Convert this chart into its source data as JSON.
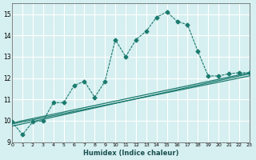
{
  "xlabel": "Humidex (Indice chaleur)",
  "ylabel": "",
  "background_color": "#d6eff0",
  "grid_color": "#ffffff",
  "line_color": "#1a7a6e",
  "xlim": [
    0,
    23
  ],
  "ylim": [
    9,
    15.5
  ],
  "yticks": [
    9,
    10,
    11,
    12,
    13,
    14,
    15
  ],
  "xticks": [
    0,
    1,
    2,
    3,
    4,
    5,
    6,
    7,
    8,
    9,
    10,
    11,
    12,
    13,
    14,
    15,
    16,
    17,
    18,
    19,
    20,
    21,
    22,
    23
  ],
  "jagged_x": [
    0,
    1,
    2,
    3,
    4,
    5,
    6,
    7,
    8,
    9,
    10,
    11,
    12,
    13,
    14,
    15,
    16,
    17,
    18,
    19,
    20,
    21,
    22,
    23
  ],
  "jagged_y": [
    9.95,
    9.35,
    9.95,
    10.0,
    10.85,
    10.85,
    11.65,
    11.85,
    11.1,
    11.85,
    13.8,
    13.0,
    13.8,
    14.2,
    14.85,
    15.1,
    14.65,
    14.5,
    13.25,
    12.1,
    12.1,
    12.2,
    12.25,
    12.25
  ],
  "line1_x": [
    0,
    23
  ],
  "line1_y": [
    9.9,
    12.25
  ],
  "line2_x": [
    0,
    23
  ],
  "line2_y": [
    9.85,
    12.1
  ],
  "line3_x": [
    0,
    23
  ],
  "line3_y": [
    9.75,
    12.2
  ]
}
